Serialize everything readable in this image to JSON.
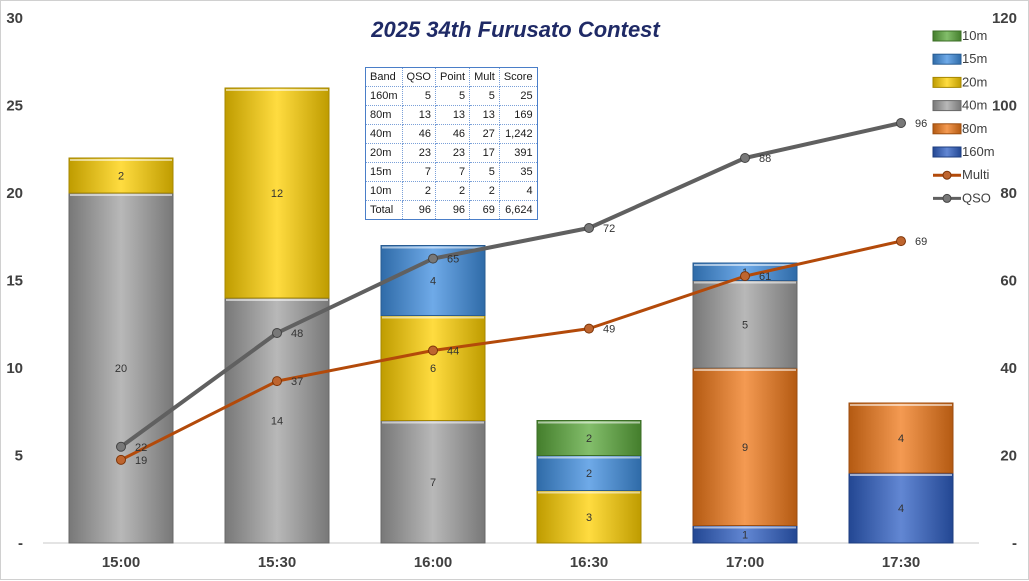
{
  "chart_data": {
    "type": "bar",
    "title": "2025 34th Furusato Contest",
    "categories": [
      "15:00",
      "15:30",
      "16:00",
      "16:30",
      "17:00",
      "17:30"
    ],
    "y_left": {
      "min": 0,
      "max": 30,
      "step": 5,
      "tick_labels": [
        "-",
        "5",
        "10",
        "15",
        "20",
        "25",
        "30"
      ]
    },
    "y_right": {
      "min": 0,
      "max": 120,
      "step": 20,
      "tick_labels": [
        "-",
        "20",
        "40",
        "60",
        "80",
        "100",
        "120"
      ]
    },
    "stack_order": [
      "160m",
      "80m",
      "40m",
      "20m",
      "15m",
      "10m"
    ],
    "series": [
      {
        "name": "160m",
        "color": "#2e5fc4",
        "label_color": "#ffff66",
        "values": [
          0,
          0,
          0,
          0,
          1,
          4
        ]
      },
      {
        "name": "80m",
        "color": "#f07818",
        "label_color": "#333333",
        "values": [
          0,
          0,
          0,
          0,
          9,
          4
        ]
      },
      {
        "name": "40m",
        "color": "#a0a0a0",
        "label_color": "#333333",
        "values": [
          20,
          14,
          7,
          0,
          5,
          0
        ]
      },
      {
        "name": "20m",
        "color": "#ffd000",
        "label_color": "#333333",
        "values": [
          2,
          12,
          6,
          3,
          0,
          0
        ]
      },
      {
        "name": "15m",
        "color": "#3f8ee0",
        "label_color": "#ffffff",
        "values": [
          0,
          0,
          4,
          2,
          1,
          0
        ]
      },
      {
        "name": "10m",
        "color": "#5aa83a",
        "label_color": "#333333",
        "values": [
          0,
          0,
          0,
          2,
          0,
          0
        ]
      }
    ],
    "lines": [
      {
        "name": "Multi",
        "color": "#b34a0a",
        "values": [
          19,
          37,
          44,
          49,
          61,
          69
        ]
      },
      {
        "name": "QSO",
        "color": "#606060",
        "values": [
          22,
          48,
          65,
          72,
          88,
          96
        ]
      }
    ],
    "legend": {
      "position": "right",
      "items": [
        "10m",
        "15m",
        "20m",
        "40m",
        "80m",
        "160m",
        "Multi",
        "QSO"
      ]
    }
  },
  "table": {
    "headers": [
      "Band",
      "QSO",
      "Point",
      "Mult",
      "Score"
    ],
    "rows": [
      [
        "160m",
        "5",
        "5",
        "5",
        "25"
      ],
      [
        "80m",
        "13",
        "13",
        "13",
        "169"
      ],
      [
        "40m",
        "46",
        "46",
        "27",
        "1,242"
      ],
      [
        "20m",
        "23",
        "23",
        "17",
        "391"
      ],
      [
        "15m",
        "7",
        "7",
        "5",
        "35"
      ],
      [
        "10m",
        "2",
        "2",
        "2",
        "4"
      ],
      [
        "Total",
        "96",
        "96",
        "69",
        "6,624"
      ]
    ]
  }
}
